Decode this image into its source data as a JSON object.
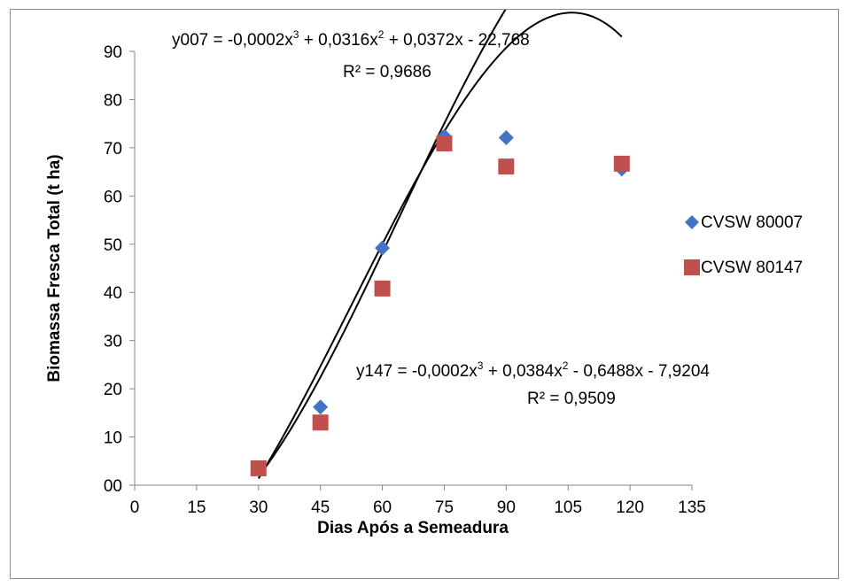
{
  "chart_data": {
    "type": "scatter",
    "title": "",
    "xlabel": "Dias Após a Semeadura",
    "ylabel": "Biomassa Fresca Total (t ha)",
    "xlim": [
      0,
      135
    ],
    "ylim": [
      0,
      90
    ],
    "x_ticks": [
      0,
      15,
      30,
      45,
      60,
      75,
      90,
      105,
      120,
      135
    ],
    "x_tick_labels": [
      "0",
      "15",
      "30",
      "45",
      "60",
      "75",
      "90",
      "105",
      "120",
      "135"
    ],
    "y_ticks": [
      0,
      10,
      20,
      30,
      40,
      50,
      60,
      70,
      80,
      90
    ],
    "y_tick_labels": [
      "00",
      "10",
      "20",
      "30",
      "40",
      "50",
      "60",
      "70",
      "80",
      "90"
    ],
    "grid": false,
    "legend_position": "right",
    "series": [
      {
        "name": "CVSW 80007",
        "marker": "diamond",
        "color": "#4472C4",
        "x": [
          30,
          45,
          60,
          75,
          90,
          118
        ],
        "y": [
          3.5,
          16.2,
          49.2,
          72.4,
          72.1,
          65.6
        ],
        "trendline": {
          "type": "polynomial",
          "order": 3,
          "coefficients": [
            -0.0002,
            0.0316,
            0.0372,
            -22.768
          ],
          "x_range": [
            30,
            118
          ],
          "color": "#000000"
        }
      },
      {
        "name": "CVSW 80147",
        "marker": "square",
        "color": "#C0504D",
        "x": [
          30,
          45,
          60,
          75,
          90,
          118
        ],
        "y": [
          3.5,
          13.0,
          40.8,
          70.9,
          66.1,
          66.7
        ],
        "trendline": {
          "type": "polynomial",
          "order": 3,
          "coefficients": [
            -0.0002,
            0.0384,
            -0.6488,
            -7.9204
          ],
          "x_range": [
            30,
            118
          ],
          "color": "#000000"
        }
      }
    ],
    "annotations": [
      {
        "equation_prefix": "y007 = -0,0002x",
        "exp1": "3",
        "mid1": " + 0,0316x",
        "exp2": "2",
        "suffix": " + 0,0372x - 22,768",
        "r2": "R² = 0,9686"
      },
      {
        "equation_prefix": "y147 = -0,0002x",
        "exp1": "3",
        "mid1": " + 0,0384x",
        "exp2": "2",
        "suffix": " - 0,6488x - 7,9204",
        "r2": "R² = 0,9509"
      }
    ]
  }
}
